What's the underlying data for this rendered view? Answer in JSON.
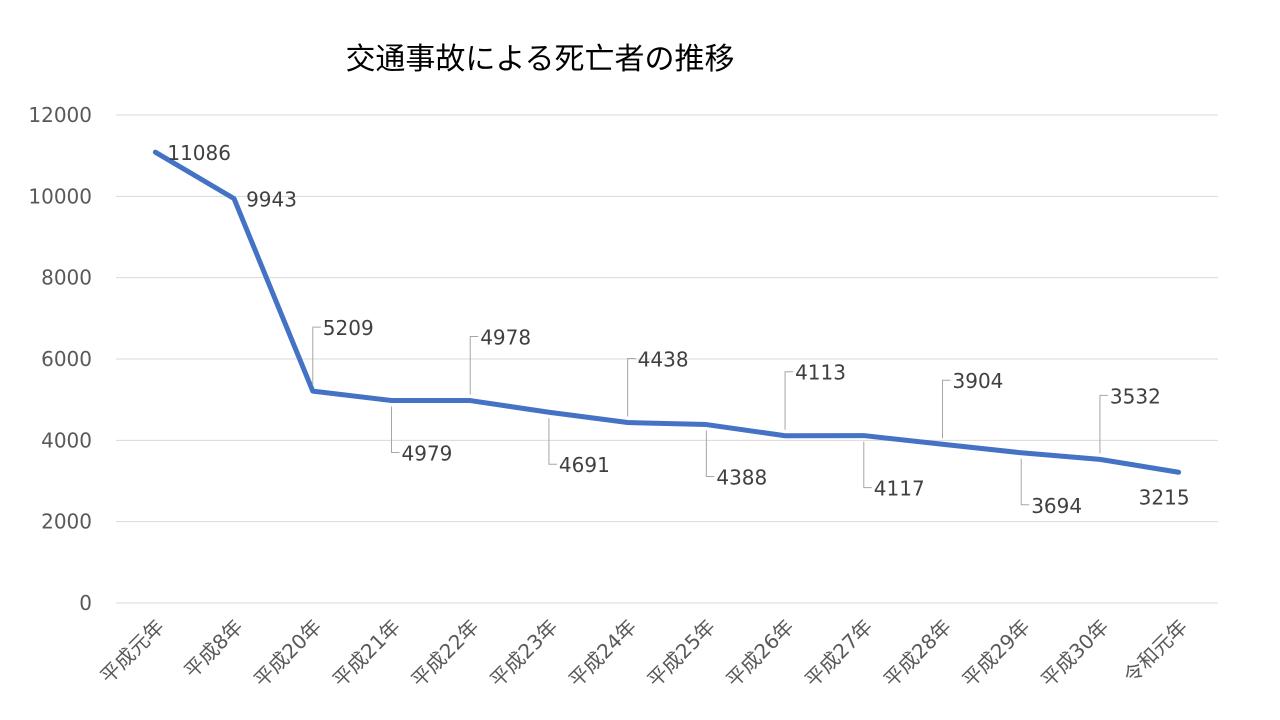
{
  "chart_data": {
    "type": "line",
    "title": "交通事故による死亡者の推移",
    "xlabel": "",
    "ylabel": "",
    "categories": [
      "平成元年",
      "平成8年",
      "平成20年",
      "平成21年",
      "平成22年",
      "平成23年",
      "平成24年",
      "平成25年",
      "平成26年",
      "平成27年",
      "平成28年",
      "平成29年",
      "平成30年",
      "令和元年"
    ],
    "series": [
      {
        "values": [
          11086,
          9943,
          5209,
          4979,
          4978,
          4691,
          4438,
          4388,
          4113,
          4117,
          3904,
          3694,
          3532,
          3215
        ]
      }
    ],
    "ylim": [
      0,
      12000
    ],
    "yticks": [
      0,
      2000,
      4000,
      6000,
      8000,
      10000,
      12000
    ],
    "grid": true,
    "legend": "none",
    "line_color": "#4472C4",
    "grid_color": "#D9D9D9"
  }
}
